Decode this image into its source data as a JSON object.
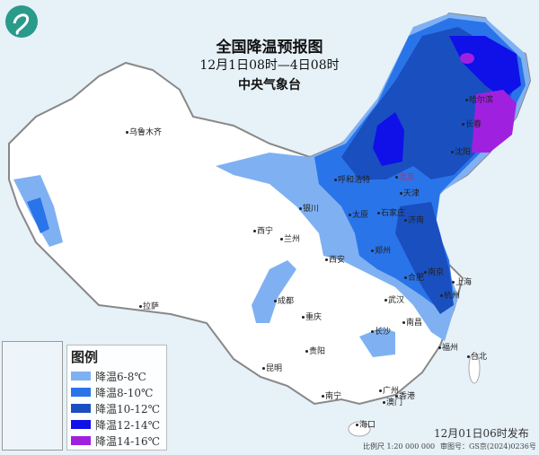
{
  "header": {
    "title": "全国降温预报图",
    "period": "12月1日08时—4日08时",
    "issuer": "中央气象台"
  },
  "legend": {
    "title": "图例",
    "items": [
      {
        "label": "降温6-8℃",
        "color": "#7fb1f2"
      },
      {
        "label": "降温8-10℃",
        "color": "#2a74ea"
      },
      {
        "label": "降温10-12℃",
        "color": "#1a4fc0"
      },
      {
        "label": "降温12-14℃",
        "color": "#1010e8"
      },
      {
        "label": "降温14-16℃",
        "color": "#a020e0"
      }
    ]
  },
  "footer": {
    "issued": "12月01日06时发布",
    "scale": "比例尺 1:20 000 000",
    "approval": "审图号：GS京(2024)0236号"
  },
  "cities": [
    {
      "name": "乌鲁木齐"
    },
    {
      "name": "西宁"
    },
    {
      "name": "兰州"
    },
    {
      "name": "银川"
    },
    {
      "name": "呼和浩特"
    },
    {
      "name": "北京"
    },
    {
      "name": "天津"
    },
    {
      "name": "石家庄"
    },
    {
      "name": "太原"
    },
    {
      "name": "济南"
    },
    {
      "name": "郑州"
    },
    {
      "name": "西安"
    },
    {
      "name": "合肥"
    },
    {
      "name": "南京"
    },
    {
      "name": "上海"
    },
    {
      "name": "杭州"
    },
    {
      "name": "武汉"
    },
    {
      "name": "长沙"
    },
    {
      "name": "南昌"
    },
    {
      "name": "福州"
    },
    {
      "name": "台北"
    },
    {
      "name": "成都"
    },
    {
      "name": "重庆"
    },
    {
      "name": "贵阳"
    },
    {
      "name": "昆明"
    },
    {
      "name": "南宁"
    },
    {
      "name": "广州"
    },
    {
      "name": "香港"
    },
    {
      "name": "澳门"
    },
    {
      "name": "海口"
    },
    {
      "name": "拉萨"
    },
    {
      "name": "哈尔滨"
    },
    {
      "name": "长春"
    },
    {
      "name": "沈阳"
    }
  ]
}
